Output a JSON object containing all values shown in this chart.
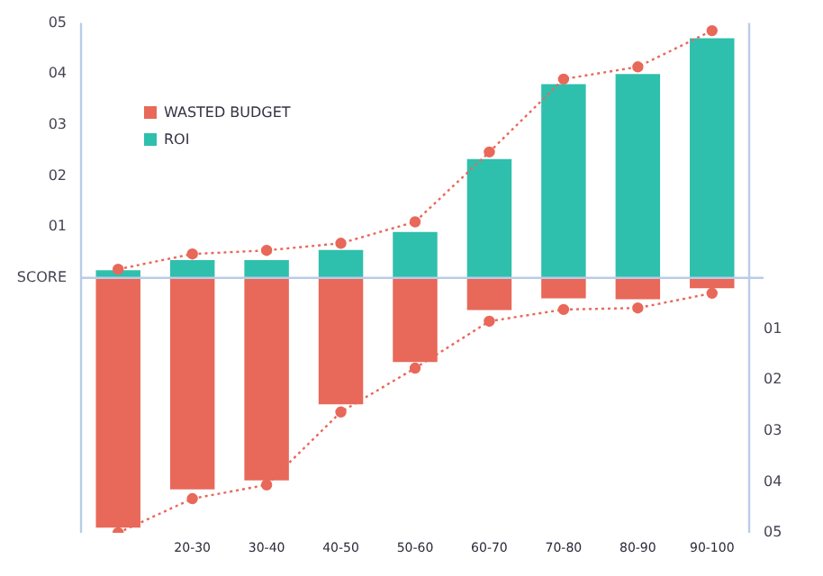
{
  "chart_data": {
    "type": "bar",
    "stacked": true,
    "legend": "top left",
    "grid": false,
    "categories": [
      null,
      "20-30",
      "30-40",
      "40-50",
      "50-60",
      "60-70",
      "70-80",
      "80-90",
      "90-100"
    ],
    "series": [
      {
        "name": "WASTED BUDGET",
        "color": "#e8685a",
        "values": [
          -4.9,
          -4.15,
          -3.97,
          -2.48,
          -1.65,
          -0.63,
          -0.4,
          -0.42,
          -0.2
        ]
      },
      {
        "name": "ROI",
        "color": "#2fbfad",
        "values": [
          0.15,
          0.35,
          0.35,
          0.55,
          0.9,
          2.33,
          3.8,
          4.0,
          4.7
        ]
      },
      {
        "type": "line",
        "color": "#e8685a",
        "marker": "circle",
        "line_style": "dotted",
        "values": [
          0.17,
          0.47,
          0.54,
          0.68,
          1.1,
          2.47,
          3.9,
          4.14,
          4.85
        ]
      },
      {
        "type": "line",
        "color": "#e8685a",
        "marker": "circle",
        "line_style": "dotted",
        "values": [
          -5.0,
          -4.33,
          -4.06,
          -2.63,
          -1.77,
          -0.85,
          -0.62,
          -0.59,
          -0.3
        ]
      }
    ],
    "ref_lines": [
      {
        "axis": "y",
        "value": 0,
        "color": "#b9cde8"
      }
    ],
    "ylim": [
      -5,
      5
    ],
    "yticks": [
      {
        "value": 0,
        "label": "SCORE"
      },
      {
        "value": 1,
        "label": "01"
      },
      {
        "value": 2,
        "label": "02"
      },
      {
        "value": 3,
        "label": "03"
      },
      {
        "value": 4,
        "label": "04"
      },
      {
        "value": 5,
        "label": "05"
      }
    ],
    "y2lim": [
      -5,
      5
    ],
    "y2ticks": [
      {
        "value": -1,
        "label": "01"
      },
      {
        "value": -2,
        "label": "02"
      },
      {
        "value": -3,
        "label": "03"
      },
      {
        "value": -4,
        "label": "04"
      },
      {
        "value": -5,
        "label": "05"
      }
    ]
  }
}
